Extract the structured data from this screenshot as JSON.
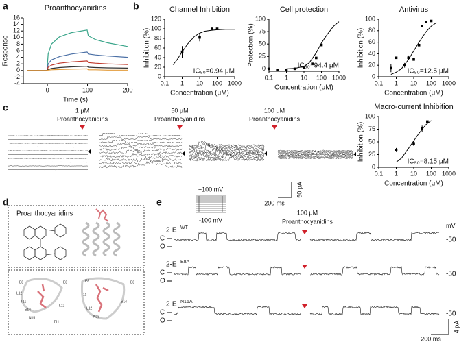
{
  "panel_labels": [
    "a",
    "b",
    "c",
    "d",
    "e"
  ],
  "chart_data": [
    {
      "type": "line",
      "title": "Proanthocyanidins",
      "x_label": "Time (s)",
      "y_label": "Response",
      "x": [
        -50,
        -20,
        -1,
        2,
        10,
        30,
        60,
        99,
        102,
        120,
        150,
        200
      ],
      "xlim": [
        -60,
        200
      ],
      "xticks": [
        0,
        100,
        200
      ],
      "ylim": [
        -4,
        16
      ],
      "yticks": [
        -4,
        -2,
        0,
        2,
        4,
        6,
        8,
        10,
        12,
        14,
        16
      ],
      "series": [
        {
          "color": "#3aa58a",
          "values": [
            0,
            0,
            0,
            5,
            8,
            10.2,
            11.5,
            12.3,
            10.5,
            9.4,
            8.4,
            7.3
          ]
        },
        {
          "color": "#4a6fa5",
          "values": [
            0,
            0,
            0,
            2,
            3.2,
            4.2,
            5,
            5.6,
            5,
            4.7,
            4.4,
            4
          ]
        },
        {
          "color": "#c0392b",
          "values": [
            0,
            0,
            0,
            1,
            1.6,
            2.2,
            2.6,
            2.9,
            2.4,
            2.2,
            2,
            1.8
          ]
        },
        {
          "color": "#333333",
          "values": [
            0,
            0,
            0,
            0.3,
            0.6,
            0.9,
            1.1,
            1.3,
            1,
            0.9,
            0.8,
            0.7
          ]
        },
        {
          "color": "#e39b3a",
          "values": [
            0,
            0,
            0,
            0.1,
            0.2,
            0.3,
            0.4,
            0.5,
            0.2,
            0.2,
            0.1,
            0.1
          ]
        }
      ]
    },
    {
      "type": "scatter",
      "title": "Channel Inhibition",
      "x_label": "Concentration (μM)",
      "y_label": "Inhibition (%)",
      "log_x": true,
      "xlim": [
        0.1,
        1000
      ],
      "xticks": [
        0.1,
        1,
        10,
        100,
        1000
      ],
      "ylim": [
        0,
        120
      ],
      "yticks": [
        0,
        20,
        40,
        60,
        80,
        100,
        120
      ],
      "color": "#000000",
      "annotation": "IC₅₀=0.94 μM",
      "points": {
        "x": [
          1,
          10,
          50,
          100
        ],
        "values": [
          52,
          82,
          100,
          100
        ],
        "errors": [
          12,
          8,
          0,
          0
        ]
      },
      "fit": {
        "x": [
          0.3,
          0.5,
          1,
          2,
          5,
          10,
          20,
          50,
          100,
          300,
          1000
        ],
        "values": [
          25,
          35,
          52,
          68,
          84,
          91,
          95,
          97,
          98,
          99,
          99
        ]
      }
    },
    {
      "type": "scatter",
      "title": "Cell protection",
      "x_label": "Concentration (μM)",
      "y_label": "Protection (%)",
      "log_x": true,
      "xlim": [
        0.1,
        1000
      ],
      "xticks": [
        0.1,
        1,
        10,
        100,
        1000
      ],
      "ylim": [
        -5,
        100
      ],
      "yticks": [
        0,
        25,
        50,
        75,
        100
      ],
      "color": "#000000",
      "annotation": "IC₅₀=94.4 μM",
      "points": {
        "x": [
          0.1,
          0.3,
          1,
          3,
          10,
          30,
          50,
          100
        ],
        "values": [
          0,
          -2,
          -3,
          0,
          2,
          10,
          22,
          48
        ],
        "errors": [
          2,
          1,
          1,
          1,
          1,
          2,
          2,
          2
        ]
      },
      "fit": {
        "x": [
          1,
          3,
          10,
          20,
          50,
          100,
          200,
          500,
          1000
        ],
        "values": [
          0,
          1,
          5,
          12,
          32,
          52,
          68,
          86,
          95
        ]
      }
    },
    {
      "type": "scatter",
      "title": "Antivirus",
      "x_label": "Concentration (μM)",
      "y_label": "Inhibition (%)",
      "log_x": true,
      "xlim": [
        0.1,
        1000
      ],
      "xticks": [
        0.1,
        1,
        10,
        100,
        1000
      ],
      "ylim": [
        0,
        100
      ],
      "yticks": [
        0,
        20,
        40,
        60,
        80,
        100
      ],
      "color": "#000000",
      "annotation": "IC₅₀=12.5 μM",
      "points": {
        "x": [
          0.5,
          1,
          3,
          5,
          10,
          20,
          30,
          50,
          100
        ],
        "values": [
          15,
          33,
          20,
          33,
          30,
          55,
          88,
          95,
          97
        ],
        "errors": [
          7,
          2,
          4,
          4,
          2,
          2,
          2,
          1,
          1
        ]
      },
      "fit": {
        "x": [
          0.5,
          1,
          2,
          5,
          10,
          20,
          50,
          100,
          200
        ],
        "values": [
          4,
          8,
          14,
          30,
          45,
          60,
          78,
          88,
          94
        ]
      }
    },
    {
      "type": "scatter",
      "title": "Macro-current Inhibition",
      "x_label": "Concentration (μM)",
      "y_label": "Inhibition (%)",
      "log_x": true,
      "xlim": [
        0.1,
        1000
      ],
      "xticks": [
        0.1,
        1,
        10,
        100,
        1000
      ],
      "ylim": [
        0,
        100
      ],
      "yticks": [
        0,
        25,
        50,
        75,
        100
      ],
      "color": "#000000",
      "annotation": "IC₅₀=8.15 μM",
      "points": {
        "x": [
          1,
          10,
          30,
          60
        ],
        "values": [
          34,
          47,
          76,
          90
        ],
        "errors": [
          4,
          5,
          6,
          2
        ]
      },
      "fit": {
        "x": [
          1,
          2,
          5,
          10,
          20,
          50,
          100
        ],
        "values": [
          10,
          18,
          37,
          52,
          67,
          84,
          92
        ]
      }
    }
  ],
  "panel_c": {
    "conditions": [
      {
        "conc": "1 μM",
        "compound": "Proanthocyanidins"
      },
      {
        "conc": "50 μM",
        "compound": "Proanthocyanidins"
      },
      {
        "conc": "100 μM",
        "compound": "Proanthocyanidins"
      }
    ],
    "protocol_high": "+100 mV",
    "protocol_low": "-100 mV",
    "scale_current": "50 pA",
    "scale_time": "200 ms"
  },
  "panel_d": {
    "compound": "Proanthocyanidins",
    "residues": [
      "E8",
      "L12",
      "T11",
      "S14",
      "N15",
      "T11",
      "L12",
      "E8",
      "E8",
      "T11",
      "L12",
      "N15",
      "S14",
      "E8"
    ]
  },
  "panel_e": {
    "conc": "100 μM",
    "compound": "Proanthocyanidins",
    "voltage_unit": "mV",
    "traces": [
      {
        "prefix": "2-E",
        "variant": "WT",
        "closed": "C",
        "open": "O",
        "voltage": -50
      },
      {
        "prefix": "2-E",
        "variant": "E8A",
        "closed": "C",
        "open": "O",
        "voltage": -50
      },
      {
        "prefix": "2-E",
        "variant": "N15A",
        "closed": "C",
        "open": "O",
        "voltage": -50
      }
    ],
    "scale_current": "4 pA",
    "scale_time": "200 ms"
  }
}
